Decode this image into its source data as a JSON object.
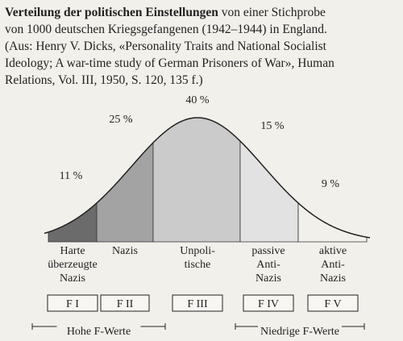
{
  "caption": {
    "bold": "Verteilung der politischen Einstellungen",
    "lines": [
      " von einer Stichprobe",
      "von 1000 deutschen Kriegsgefangenen (1942–1944) in England.",
      "(Aus: Henry V. Dicks, «Personality Traits and National Socialist",
      "Ideology; A war-time study of German Prisoners of War», Human",
      "Relations, Vol. III, 1950, S. 120, 135 f.)"
    ]
  },
  "sections": [
    {
      "percent": "11 %",
      "label": [
        "Harte",
        "überzeugte",
        "Nazis"
      ],
      "box": "F I"
    },
    {
      "percent": "25 %",
      "label": [
        "Nazis"
      ],
      "box": "F II"
    },
    {
      "percent": "40 %",
      "label": [
        "Unpoli-",
        "tische"
      ],
      "box": "F III"
    },
    {
      "percent": "15 %",
      "label": [
        "passive",
        "Anti-",
        "Nazis"
      ],
      "box": "F IV"
    },
    {
      "percent": "9 %",
      "label": [
        "aktive",
        "Anti-",
        "Nazis"
      ],
      "box": "F V"
    }
  ],
  "groups": [
    "Hohe F-Werte",
    "Niedrige F-Werte"
  ]
}
